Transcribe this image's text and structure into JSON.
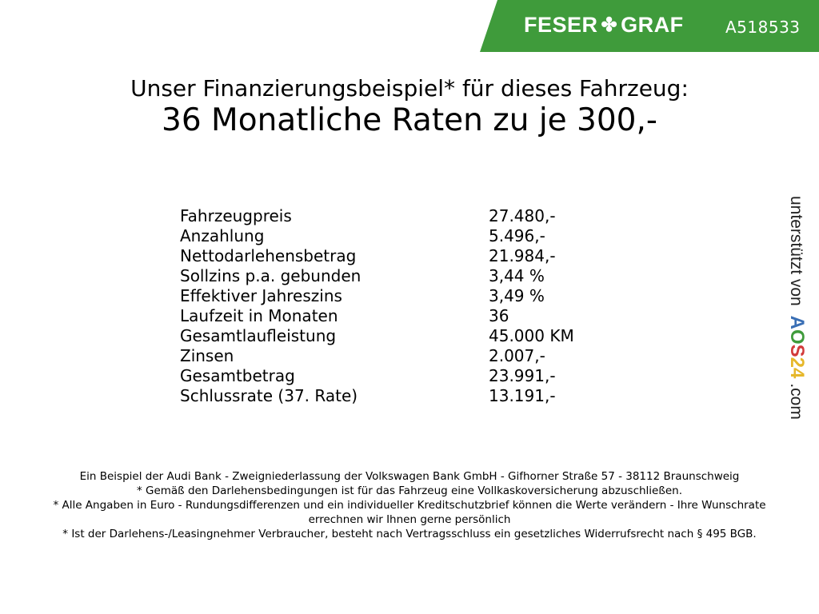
{
  "header": {
    "brand": "FESER",
    "brand2": "GRAF",
    "brand_icon": "clover-icon",
    "vehicle_code": "A518533",
    "accent": "#3f9b3b"
  },
  "title": {
    "line1": "Unser Finanzierungsbeispiel* für dieses Fahrzeug:",
    "line2": "36 Monatliche Raten zu je 300,-"
  },
  "rows": [
    {
      "label": "Fahrzeugpreis",
      "value": "27.480,-"
    },
    {
      "label": "Anzahlung",
      "value": "5.496,-"
    },
    {
      "label": "Nettodarlehensbetrag",
      "value": "21.984,-"
    },
    {
      "label": "Sollzins p.a. gebunden",
      "value": "3,44 %"
    },
    {
      "label": "Effektiver Jahreszins",
      "value": "3,49 %"
    },
    {
      "label": "Laufzeit in Monaten",
      "value": "36"
    },
    {
      "label": "Gesamtlaufleistung",
      "value": "45.000 KM"
    },
    {
      "label": "Zinsen",
      "value": "2.007,-"
    },
    {
      "label": "Gesamtbetrag",
      "value": "23.991,-"
    },
    {
      "label": "Schlussrate (37. Rate)",
      "value": "13.191,-"
    }
  ],
  "side": {
    "prefix": "unterstützt von",
    "logo": [
      "A",
      "O",
      "S",
      "2",
      "4"
    ],
    "suffix": ".com",
    "logo_colors": [
      "#3a6fb5",
      "#3f9b3b",
      "#d23a3a",
      "#e6b72a",
      "#e6b72a"
    ]
  },
  "footer": [
    "Ein Beispiel der Audi Bank - Zweigniederlassung der Volkswagen Bank GmbH - Gifhorner Straße 57 - 38112 Braunschweig",
    "* Gemäß den Darlehensbedingungen ist für das Fahrzeug eine Vollkaskoversicherung abzuschließen.",
    "* Alle Angaben in Euro - Rundungsdifferenzen und ein individueller Kreditschutzbrief können die Werte verändern - Ihre Wunschrate errechnen wir Ihnen gerne persönlich",
    "* Ist der Darlehens-/Leasingnehmer Verbraucher, besteht nach Vertragsschluss ein gesetzliches Widerrufsrecht nach § 495 BGB."
  ]
}
